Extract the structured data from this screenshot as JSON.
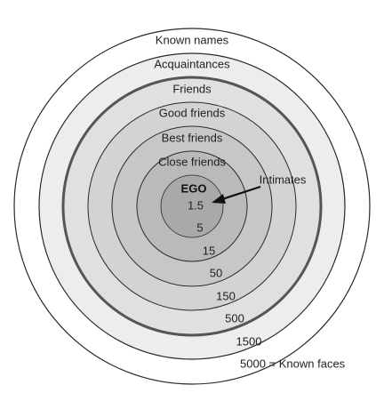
{
  "rings": [
    {
      "name": "Known names",
      "count": "1500",
      "fill": "#ffffff"
    },
    {
      "name": "Acquaintances",
      "count": "500",
      "fill": "#ededed"
    },
    {
      "name": "Friends",
      "count": "150",
      "fill": "#e0e0e0"
    },
    {
      "name": "Good friends",
      "count": "50",
      "fill": "#d3d3d3"
    },
    {
      "name": "Best friends",
      "count": "15",
      "fill": "#c7c7c7"
    },
    {
      "name": "Close friends",
      "count": "5",
      "fill": "#bababa"
    },
    {
      "name": "EGO",
      "count": "1.5",
      "fill": "#a9a9a9"
    }
  ],
  "annotation": {
    "label": "Intimates"
  },
  "footer": {
    "label": "5000 = Known faces"
  },
  "colors": {
    "stroke": "#2a2a2a",
    "thick_stroke": "#555555",
    "text": "#1f1f1f"
  }
}
